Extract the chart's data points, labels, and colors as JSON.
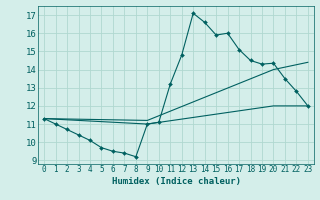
{
  "title": "",
  "xlabel": "Humidex (Indice chaleur)",
  "xlim": [
    -0.5,
    23.5
  ],
  "ylim": [
    8.8,
    17.5
  ],
  "yticks": [
    9,
    10,
    11,
    12,
    13,
    14,
    15,
    16,
    17
  ],
  "xticks": [
    0,
    1,
    2,
    3,
    4,
    5,
    6,
    7,
    8,
    9,
    10,
    11,
    12,
    13,
    14,
    15,
    16,
    17,
    18,
    19,
    20,
    21,
    22,
    23
  ],
  "background_color": "#d4eeea",
  "grid_color": "#b0d8d0",
  "line_color": "#006060",
  "line1_x": [
    0,
    1,
    2,
    3,
    4,
    5,
    6,
    7,
    8,
    9,
    10,
    11,
    12,
    13,
    14,
    15,
    16,
    17,
    18,
    19,
    20,
    21,
    22,
    23
  ],
  "line1_y": [
    11.3,
    11.0,
    10.7,
    10.4,
    10.1,
    9.7,
    9.5,
    9.4,
    9.2,
    11.0,
    11.1,
    13.2,
    14.8,
    17.1,
    16.6,
    15.9,
    16.0,
    15.1,
    14.5,
    14.3,
    14.35,
    13.5,
    12.8,
    12.0
  ],
  "line2_x": [
    0,
    9,
    20,
    23
  ],
  "line2_y": [
    11.3,
    11.2,
    14.0,
    14.4
  ],
  "line3_x": [
    0,
    9,
    20,
    23
  ],
  "line3_y": [
    11.3,
    11.0,
    12.0,
    12.0
  ]
}
